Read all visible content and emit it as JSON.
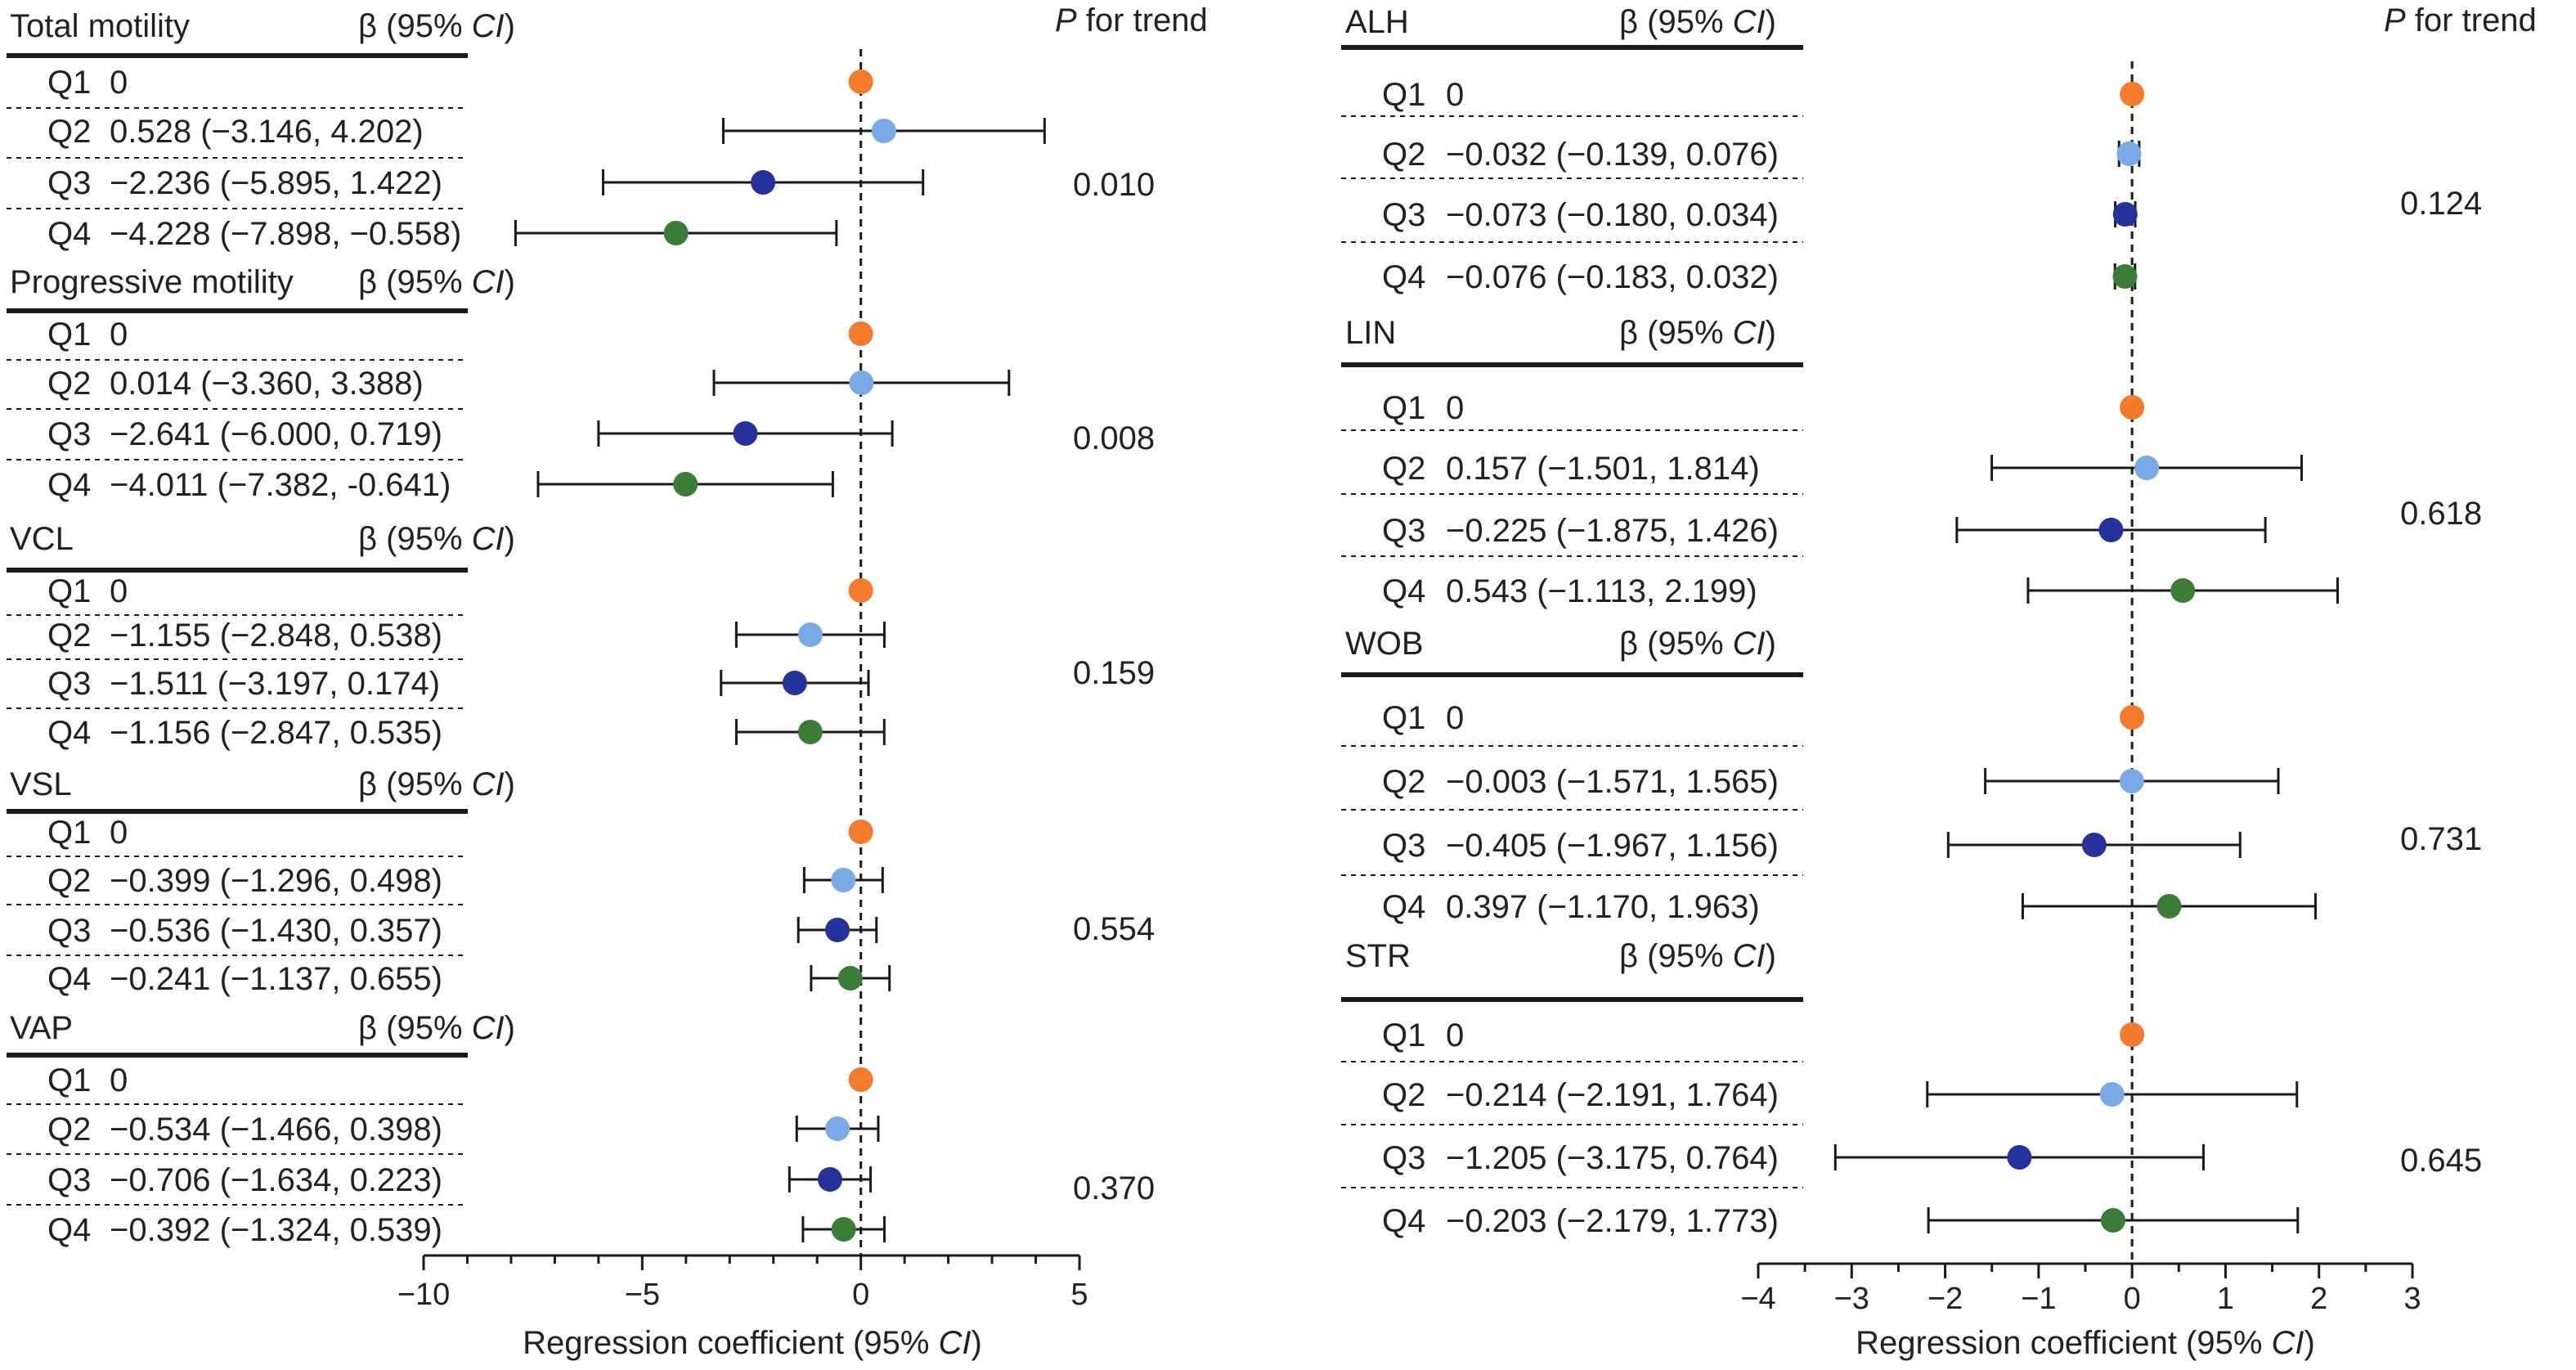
{
  "colors": {
    "Q1": "#f47b2a",
    "Q2": "#7aaae6",
    "Q3": "#25329c",
    "Q4": "#3a7d37",
    "line": "#1a1a1a"
  },
  "chart_data": [
    {
      "type": "forest",
      "panel": "left",
      "header": {
        "p_for_trend": "P for trend",
        "p_italic": "P",
        "p_rest": " for trend"
      },
      "xlabel": "Regression coefficient (95% CI)",
      "xlabel_main": "Regression coefficient (95% ",
      "xlabel_ci": "CI",
      "xlabel_close": ")",
      "xlim": [
        -10,
        5
      ],
      "xticks": [
        -10,
        -5,
        0,
        5
      ],
      "xtick_labels": [
        "−10",
        "−5",
        "0",
        "5"
      ],
      "reference_line": 0,
      "sections": [
        {
          "title": "Total motility",
          "beta_label": "β (95% ",
          "beta_ci": "CI",
          "beta_close": ")",
          "p_trend": "0.010",
          "rows": [
            {
              "q": "Q1",
              "text": "0",
              "beta": 0
            },
            {
              "q": "Q2",
              "text": "0.528 (−3.146, 4.202)",
              "beta": 0.528,
              "lo": -3.146,
              "hi": 4.202
            },
            {
              "q": "Q3",
              "text": "−2.236 (−5.895, 1.422)",
              "beta": -2.236,
              "lo": -5.895,
              "hi": 1.422
            },
            {
              "q": "Q4",
              "text": "−4.228 (−7.898, −0.558)",
              "beta": -4.228,
              "lo": -7.898,
              "hi": -0.558
            }
          ]
        },
        {
          "title": "Progressive motility",
          "beta_label": "β (95% ",
          "beta_ci": "CI",
          "beta_close": ")",
          "p_trend": "0.008",
          "rows": [
            {
              "q": "Q1",
              "text": "0",
              "beta": 0
            },
            {
              "q": "Q2",
              "text": "0.014 (−3.360, 3.388)",
              "beta": 0.014,
              "lo": -3.36,
              "hi": 3.388
            },
            {
              "q": "Q3",
              "text": "−2.641 (−6.000, 0.719)",
              "beta": -2.641,
              "lo": -6.0,
              "hi": 0.719
            },
            {
              "q": "Q4",
              "text": "−4.011 (−7.382, -0.641)",
              "beta": -4.011,
              "lo": -7.382,
              "hi": -0.641
            }
          ]
        },
        {
          "title": "VCL",
          "beta_label": "β (95% ",
          "beta_ci": "CI",
          "beta_close": ")",
          "p_trend": "0.159",
          "rows": [
            {
              "q": "Q1",
              "text": "0",
              "beta": 0
            },
            {
              "q": "Q2",
              "text": "−1.155 (−2.848, 0.538)",
              "beta": -1.155,
              "lo": -2.848,
              "hi": 0.538
            },
            {
              "q": "Q3",
              "text": "−1.511 (−3.197, 0.174)",
              "beta": -1.511,
              "lo": -3.197,
              "hi": 0.174
            },
            {
              "q": "Q4",
              "text": "−1.156 (−2.847, 0.535)",
              "beta": -1.156,
              "lo": -2.847,
              "hi": 0.535
            }
          ]
        },
        {
          "title": "VSL",
          "beta_label": "β (95% ",
          "beta_ci": "CI",
          "beta_close": ")",
          "p_trend": "0.554",
          "rows": [
            {
              "q": "Q1",
              "text": "0",
              "beta": 0
            },
            {
              "q": "Q2",
              "text": "−0.399 (−1.296, 0.498)",
              "beta": -0.399,
              "lo": -1.296,
              "hi": 0.498
            },
            {
              "q": "Q3",
              "text": "−0.536 (−1.430, 0.357)",
              "beta": -0.536,
              "lo": -1.43,
              "hi": 0.357
            },
            {
              "q": "Q4",
              "text": "−0.241 (−1.137, 0.655)",
              "beta": -0.241,
              "lo": -1.137,
              "hi": 0.655
            }
          ]
        },
        {
          "title": "VAP",
          "beta_label": "β (95% ",
          "beta_ci": "CI",
          "beta_close": ")",
          "p_trend": "0.370",
          "rows": [
            {
              "q": "Q1",
              "text": "0",
              "beta": 0
            },
            {
              "q": "Q2",
              "text": "−0.534 (−1.466, 0.398)",
              "beta": -0.534,
              "lo": -1.466,
              "hi": 0.398
            },
            {
              "q": "Q3",
              "text": "−0.706 (−1.634, 0.223)",
              "beta": -0.706,
              "lo": -1.634,
              "hi": 0.223
            },
            {
              "q": "Q4",
              "text": "−0.392 (−1.324, 0.539)",
              "beta": -0.392,
              "lo": -1.324,
              "hi": 0.539
            }
          ]
        }
      ]
    },
    {
      "type": "forest",
      "panel": "right",
      "header": {
        "p_for_trend": "P for trend",
        "p_italic": "P",
        "p_rest": " for trend"
      },
      "xlabel": "Regression coefficient (95% CI)",
      "xlabel_main": "Regression coefficient (95% ",
      "xlabel_ci": "CI",
      "xlabel_close": ")",
      "xlim": [
        -4,
        3
      ],
      "xticks": [
        -4,
        -3,
        -2,
        -1,
        0,
        1,
        2,
        3
      ],
      "xtick_labels": [
        "−4",
        "−3",
        "−2",
        "−1",
        "0",
        "1",
        "2",
        "3"
      ],
      "reference_line": 0,
      "sections": [
        {
          "title": "ALH",
          "beta_label": "β (95% ",
          "beta_ci": "CI",
          "beta_close": ")",
          "p_trend": "0.124",
          "rows": [
            {
              "q": "Q1",
              "text": "0",
              "beta": 0
            },
            {
              "q": "Q2",
              "text": "−0.032 (−0.139, 0.076)",
              "beta": -0.032,
              "lo": -0.139,
              "hi": 0.076
            },
            {
              "q": "Q3",
              "text": "−0.073 (−0.180, 0.034)",
              "beta": -0.073,
              "lo": -0.18,
              "hi": 0.034
            },
            {
              "q": "Q4",
              "text": "−0.076 (−0.183, 0.032)",
              "beta": -0.076,
              "lo": -0.183,
              "hi": 0.032
            }
          ]
        },
        {
          "title": "LIN",
          "beta_label": "β (95% ",
          "beta_ci": "CI",
          "beta_close": ")",
          "p_trend": "0.618",
          "rows": [
            {
              "q": "Q1",
              "text": "0",
              "beta": 0
            },
            {
              "q": "Q2",
              "text": "0.157 (−1.501, 1.814)",
              "beta": 0.157,
              "lo": -1.501,
              "hi": 1.814
            },
            {
              "q": "Q3",
              "text": "−0.225 (−1.875, 1.426)",
              "beta": -0.225,
              "lo": -1.875,
              "hi": 1.426
            },
            {
              "q": "Q4",
              "text": "0.543 (−1.113, 2.199)",
              "beta": 0.543,
              "lo": -1.113,
              "hi": 2.199
            }
          ]
        },
        {
          "title": "WOB",
          "beta_label": "β (95% ",
          "beta_ci": "CI",
          "beta_close": ")",
          "p_trend": "0.731",
          "rows": [
            {
              "q": "Q1",
              "text": "0",
              "beta": 0
            },
            {
              "q": "Q2",
              "text": "−0.003 (−1.571, 1.565)",
              "beta": -0.003,
              "lo": -1.571,
              "hi": 1.565
            },
            {
              "q": "Q3",
              "text": "−0.405 (−1.967, 1.156)",
              "beta": -0.405,
              "lo": -1.967,
              "hi": 1.156
            },
            {
              "q": "Q4",
              "text": "0.397 (−1.170, 1.963)",
              "beta": 0.397,
              "lo": -1.17,
              "hi": 1.963
            }
          ]
        },
        {
          "title": "STR",
          "beta_label": "β (95% ",
          "beta_ci": "CI",
          "beta_close": ")",
          "p_trend": "0.645",
          "rows": [
            {
              "q": "Q1",
              "text": "0",
              "beta": 0
            },
            {
              "q": "Q2",
              "text": "−0.214 (−2.191, 1.764)",
              "beta": -0.214,
              "lo": -2.191,
              "hi": 1.764
            },
            {
              "q": "Q3",
              "text": "−1.205 (−3.175, 0.764)",
              "beta": -1.205,
              "lo": -3.175,
              "hi": 0.764
            },
            {
              "q": "Q4",
              "text": "−0.203 (−2.179, 1.773)",
              "beta": -0.203,
              "lo": -2.179,
              "hi": 1.773
            }
          ]
        }
      ]
    }
  ]
}
